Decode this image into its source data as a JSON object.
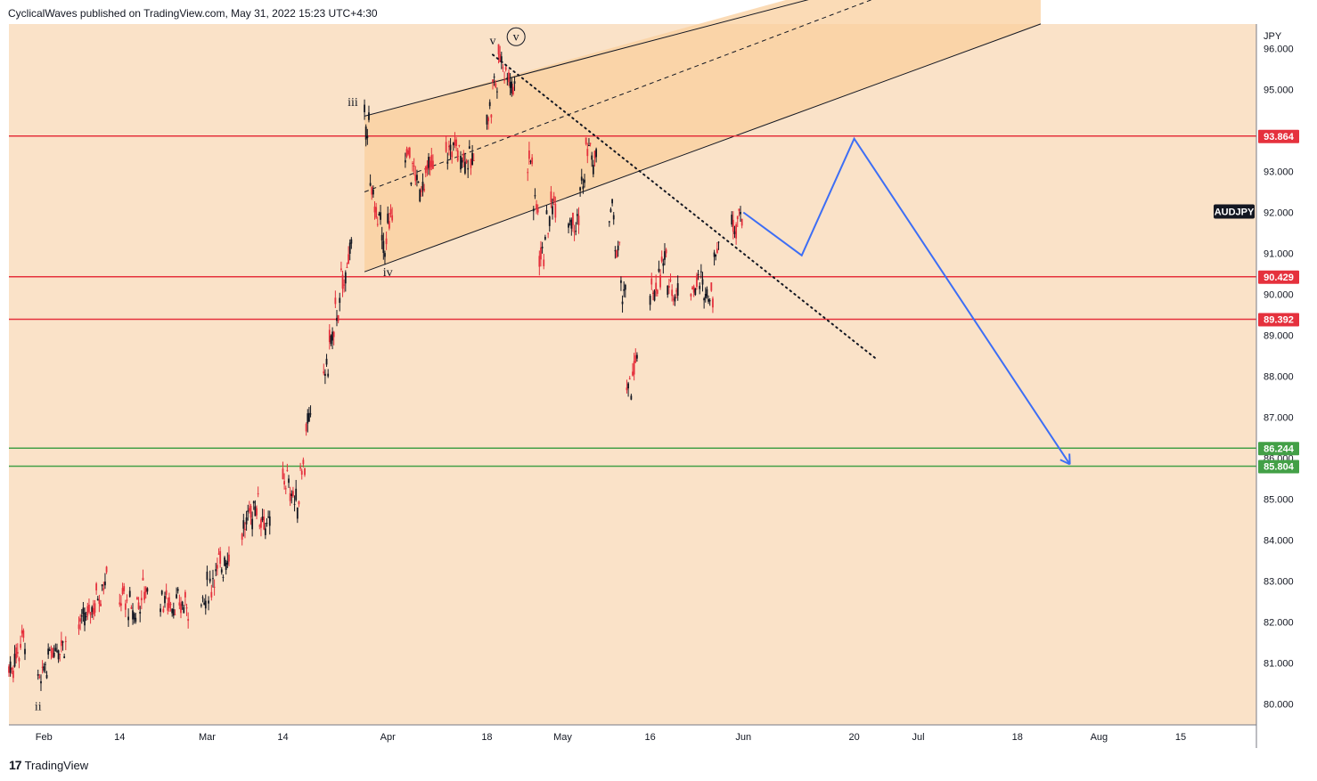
{
  "header": {
    "text": "CyclicalWaves published on TradingView.com, May 31, 2022 15:23 UTC+4:30"
  },
  "footer": {
    "logo_mark": "17",
    "logo_text": "TradingView"
  },
  "colors": {
    "background": "#fae2c8",
    "channel_fill": "#f9cf9e",
    "resistance": "#e5313d",
    "support": "#43a047",
    "projection": "#3d6ef5",
    "candle_up": "#131722",
    "candle_down": "#e5313d"
  },
  "chart_data": {
    "type": "candlestick",
    "symbol": "AUDJPY",
    "currency": "JPY",
    "ylim": [
      79.6,
      96.6
    ],
    "x_axis": {
      "start": "2022-01-26",
      "end": "2022-08-28",
      "ticks": [
        {
          "date": "2022-02-01",
          "label": "Feb"
        },
        {
          "date": "2022-02-14",
          "label": "14"
        },
        {
          "date": "2022-03-01",
          "label": "Mar"
        },
        {
          "date": "2022-03-14",
          "label": "14"
        },
        {
          "date": "2022-04-01",
          "label": "Apr"
        },
        {
          "date": "2022-04-18",
          "label": "18"
        },
        {
          "date": "2022-05-01",
          "label": "May"
        },
        {
          "date": "2022-05-16",
          "label": "16"
        },
        {
          "date": "2022-06-01",
          "label": "Jun"
        },
        {
          "date": "2022-06-20",
          "label": "20"
        },
        {
          "date": "2022-07-01",
          "label": "Jul"
        },
        {
          "date": "2022-07-18",
          "label": "18"
        },
        {
          "date": "2022-08-01",
          "label": "Aug"
        },
        {
          "date": "2022-08-15",
          "label": "15"
        }
      ]
    },
    "y_ticks": [
      "80.000",
      "81.000",
      "82.000",
      "83.000",
      "84.000",
      "85.000",
      "86.000",
      "87.000",
      "88.000",
      "89.000",
      "90.000",
      "91.000",
      "92.000",
      "93.000",
      "95.000",
      "96.000"
    ],
    "price_path": [
      {
        "date": "2022-01-26",
        "value": 80.9
      },
      {
        "date": "2022-01-28",
        "value": 81.6
      },
      {
        "date": "2022-01-31",
        "value": 80.5
      },
      {
        "date": "2022-02-02",
        "value": 81.4
      },
      {
        "date": "2022-02-04",
        "value": 81.5
      },
      {
        "date": "2022-02-08",
        "value": 82.1
      },
      {
        "date": "2022-02-11",
        "value": 83.0
      },
      {
        "date": "2022-02-14",
        "value": 82.6
      },
      {
        "date": "2022-02-16",
        "value": 82.2
      },
      {
        "date": "2022-02-18",
        "value": 82.8
      },
      {
        "date": "2022-02-22",
        "value": 82.5
      },
      {
        "date": "2022-02-24",
        "value": 82.4
      },
      {
        "date": "2022-02-28",
        "value": 82.5
      },
      {
        "date": "2022-03-02",
        "value": 83.2
      },
      {
        "date": "2022-03-04",
        "value": 83.6
      },
      {
        "date": "2022-03-07",
        "value": 84.3
      },
      {
        "date": "2022-03-09",
        "value": 84.9
      },
      {
        "date": "2022-03-11",
        "value": 84.3
      },
      {
        "date": "2022-03-14",
        "value": 85.5
      },
      {
        "date": "2022-03-16",
        "value": 84.9
      },
      {
        "date": "2022-03-18",
        "value": 86.8
      },
      {
        "date": "2022-03-21",
        "value": 88.2
      },
      {
        "date": "2022-03-23",
        "value": 89.6
      },
      {
        "date": "2022-03-25",
        "value": 91.0
      },
      {
        "date": "2022-03-28",
        "value": 94.2
      },
      {
        "date": "2022-03-29",
        "value": 92.4
      },
      {
        "date": "2022-03-31",
        "value": 91.2
      },
      {
        "date": "2022-04-04",
        "value": 93.4
      },
      {
        "date": "2022-04-06",
        "value": 92.6
      },
      {
        "date": "2022-04-08",
        "value": 93.1
      },
      {
        "date": "2022-04-12",
        "value": 93.6
      },
      {
        "date": "2022-04-15",
        "value": 93.2
      },
      {
        "date": "2022-04-18",
        "value": 94.5
      },
      {
        "date": "2022-04-20",
        "value": 95.8
      },
      {
        "date": "2022-04-22",
        "value": 95.1
      },
      {
        "date": "2022-04-25",
        "value": 93.3
      },
      {
        "date": "2022-04-27",
        "value": 91.0
      },
      {
        "date": "2022-04-29",
        "value": 92.3
      },
      {
        "date": "2022-05-03",
        "value": 91.8
      },
      {
        "date": "2022-05-05",
        "value": 93.6
      },
      {
        "date": "2022-05-09",
        "value": 92.0
      },
      {
        "date": "2022-05-11",
        "value": 90.1
      },
      {
        "date": "2022-05-12",
        "value": 87.6
      },
      {
        "date": "2022-05-16",
        "value": 90.0
      },
      {
        "date": "2022-05-18",
        "value": 90.7
      },
      {
        "date": "2022-05-20",
        "value": 90.0
      },
      {
        "date": "2022-05-24",
        "value": 90.3
      },
      {
        "date": "2022-05-26",
        "value": 90.0
      },
      {
        "date": "2022-05-27",
        "value": 91.1
      },
      {
        "date": "2022-05-31",
        "value": 92.0
      }
    ],
    "horizontal_levels": [
      {
        "value": 93.864,
        "label": "93.864",
        "role": "resistance"
      },
      {
        "value": 90.429,
        "label": "90.429",
        "role": "resistance"
      },
      {
        "value": 89.392,
        "label": "89.392",
        "role": "resistance"
      },
      {
        "value": 86.244,
        "label": "86.244",
        "role": "support"
      },
      {
        "value": 85.804,
        "label": "85.804",
        "role": "support"
      }
    ],
    "channel": {
      "upper": [
        {
          "date": "2022-03-28",
          "value": 94.35
        },
        {
          "date": "2022-06-15",
          "value": 97.3
        }
      ],
      "middle": [
        {
          "date": "2022-03-28",
          "value": 92.5
        },
        {
          "date": "2022-06-25",
          "value": 97.3
        }
      ],
      "lower": [
        {
          "date": "2022-03-28",
          "value": 90.55
        },
        {
          "date": "2022-07-22",
          "value": 96.6
        }
      ],
      "fill_upper": [
        {
          "date": "2022-03-28",
          "value": 94.35
        },
        {
          "date": "2022-07-22",
          "value": 98.9
        }
      ]
    },
    "trendline_dotted": [
      {
        "date": "2022-04-19",
        "value": 95.85
      },
      {
        "date": "2022-06-24",
        "value": 88.4
      }
    ],
    "projection_path": [
      {
        "date": "2022-06-01",
        "value": 92.0
      },
      {
        "date": "2022-06-11",
        "value": 90.95
      },
      {
        "date": "2022-06-20",
        "value": 93.8
      },
      {
        "date": "2022-07-27",
        "value": 85.85
      }
    ],
    "wave_labels": [
      {
        "text": "ii",
        "date": "2022-01-31",
        "value": 79.85
      },
      {
        "text": "iii",
        "date": "2022-03-26",
        "value": 94.6
      },
      {
        "text": "iv",
        "date": "2022-04-01",
        "value": 90.45
      },
      {
        "text": "v",
        "date": "2022-04-19",
        "value": 96.1
      },
      {
        "text": "v",
        "date": "2022-04-23",
        "value": 96.2,
        "circled": true
      }
    ],
    "last_price_label": "AUDJPY",
    "axis_unit": "JPY"
  }
}
